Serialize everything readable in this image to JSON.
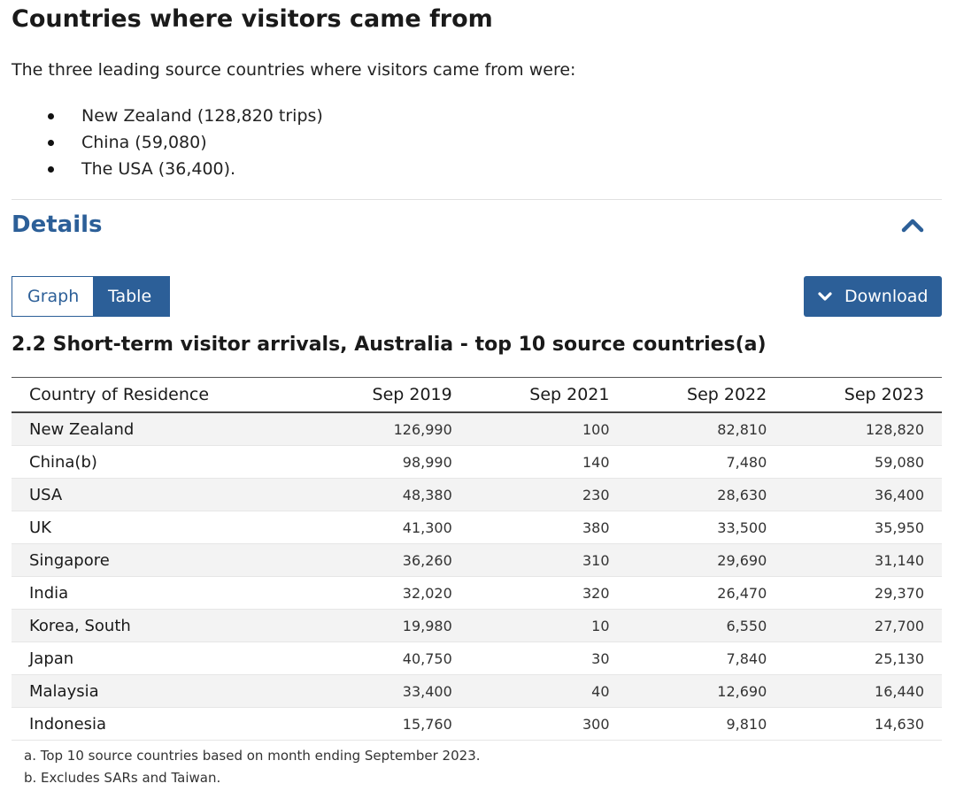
{
  "heading": "Countries where visitors came from",
  "intro": "The three leading source countries where visitors came from were:",
  "bullets": [
    "New Zealand (128,820 trips)",
    "China (59,080)",
    "The USA (36,400)."
  ],
  "details": {
    "title": "Details",
    "collapse_icon": "chevron-up-icon"
  },
  "view_toggle": {
    "graph_label": "Graph",
    "table_label": "Table",
    "selected": "Table"
  },
  "download": {
    "label": "Download",
    "icon": "chevron-down-icon"
  },
  "colors": {
    "accent": "#2c5f98",
    "row_stripe": "#f3f3f3"
  },
  "table": {
    "title": "2.2 Short-term visitor arrivals, Australia - top 10 source countries(a)",
    "headers": [
      "Country of Residence",
      "Sep 2019",
      "Sep 2021",
      "Sep 2022",
      "Sep 2023"
    ],
    "rows": [
      [
        "New Zealand",
        "126,990",
        "100",
        "82,810",
        "128,820"
      ],
      [
        "China(b)",
        "98,990",
        "140",
        "7,480",
        "59,080"
      ],
      [
        "USA",
        "48,380",
        "230",
        "28,630",
        "36,400"
      ],
      [
        "UK",
        "41,300",
        "380",
        "33,500",
        "35,950"
      ],
      [
        "Singapore",
        "36,260",
        "310",
        "29,690",
        "31,140"
      ],
      [
        "India",
        "32,020",
        "320",
        "26,470",
        "29,370"
      ],
      [
        "Korea, South",
        "19,980",
        "10",
        "6,550",
        "27,700"
      ],
      [
        "Japan",
        "40,750",
        "30",
        "7,840",
        "25,130"
      ],
      [
        "Malaysia",
        "33,400",
        "40",
        "12,690",
        "16,440"
      ],
      [
        "Indonesia",
        "15,760",
        "300",
        "9,810",
        "14,630"
      ]
    ],
    "footnotes": [
      "a. Top 10 source countries based on month ending September 2023.",
      "b. Excludes SARs and Taiwan."
    ]
  }
}
